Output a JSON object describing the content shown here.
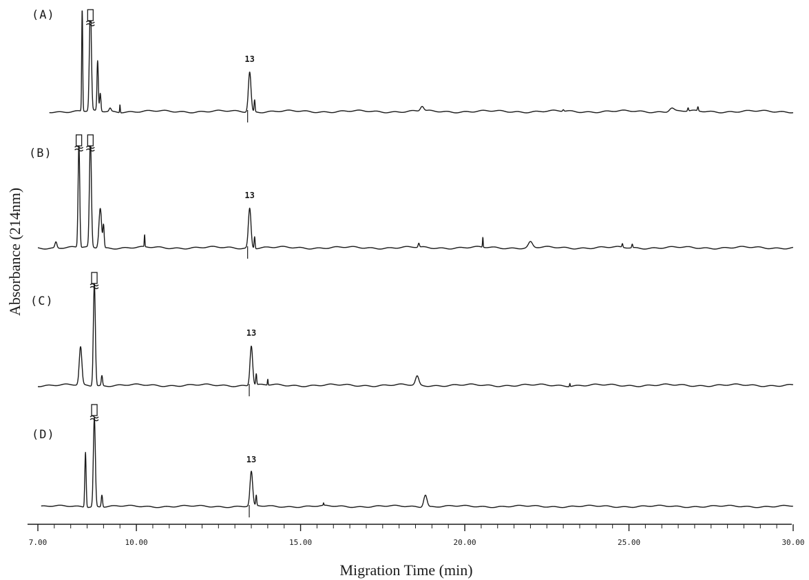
{
  "chart_data": {
    "type": "line",
    "title": "",
    "xlabel": "Migration Time (min)",
    "ylabel": "Absorbance (214nm)",
    "xlim": [
      7.0,
      30.0
    ],
    "x_ticks": [
      7.0,
      10.0,
      15.0,
      20.0,
      25.0,
      30.0
    ],
    "x_tick_labels": [
      "7.00",
      "10.00",
      "15.00",
      "20.00",
      "25.00",
      "30.00"
    ],
    "minor_tick_step": 0.5,
    "grid": false,
    "legend": "none",
    "y_units": "relative absorbance (0 = baseline, 1 = height of peak 13)",
    "series": [
      {
        "name": "(A)",
        "peak_label": "13",
        "peak_label_x": 13.45,
        "peaks": [
          {
            "x": 8.35,
            "h": 2.6,
            "w": 0.015
          },
          {
            "x": 8.6,
            "h": 2.7,
            "w": 0.03,
            "off_scale": true
          },
          {
            "x": 8.82,
            "h": 1.25,
            "w": 0.02
          },
          {
            "x": 8.9,
            "h": 0.45,
            "w": 0.02
          },
          {
            "x": 9.2,
            "h": 0.08,
            "w": 0.03
          },
          {
            "x": 9.5,
            "h": 0.2,
            "w": 0.01
          },
          {
            "x": 13.45,
            "h": 1.0,
            "w": 0.04
          },
          {
            "x": 13.6,
            "h": 0.3,
            "w": 0.015
          },
          {
            "x": 18.7,
            "h": 0.12,
            "w": 0.05
          },
          {
            "x": 23.0,
            "h": 0.04,
            "w": 0.02
          },
          {
            "x": 26.3,
            "h": 0.09,
            "w": 0.07
          },
          {
            "x": 26.8,
            "h": 0.08,
            "w": 0.015
          },
          {
            "x": 27.1,
            "h": 0.1,
            "w": 0.015
          }
        ]
      },
      {
        "name": "(B)",
        "peak_label": "13",
        "peak_label_x": 13.45,
        "peaks": [
          {
            "x": 7.55,
            "h": 0.15,
            "w": 0.03
          },
          {
            "x": 8.25,
            "h": 2.6,
            "w": 0.025,
            "off_scale": true
          },
          {
            "x": 8.6,
            "h": 2.7,
            "w": 0.03,
            "off_scale": true
          },
          {
            "x": 8.9,
            "h": 1.0,
            "w": 0.04
          },
          {
            "x": 9.0,
            "h": 0.55,
            "w": 0.02
          },
          {
            "x": 10.25,
            "h": 0.3,
            "w": 0.01
          },
          {
            "x": 13.45,
            "h": 1.0,
            "w": 0.04
          },
          {
            "x": 13.6,
            "h": 0.3,
            "w": 0.015
          },
          {
            "x": 18.6,
            "h": 0.1,
            "w": 0.02
          },
          {
            "x": 20.55,
            "h": 0.25,
            "w": 0.01
          },
          {
            "x": 22.0,
            "h": 0.14,
            "w": 0.06
          },
          {
            "x": 24.8,
            "h": 0.09,
            "w": 0.015
          },
          {
            "x": 25.1,
            "h": 0.09,
            "w": 0.015
          }
        ]
      },
      {
        "name": "(C)",
        "peak_label": "13",
        "peak_label_x": 13.5,
        "peaks": [
          {
            "x": 8.3,
            "h": 0.95,
            "w": 0.04
          },
          {
            "x": 8.72,
            "h": 2.6,
            "w": 0.03,
            "off_scale": true
          },
          {
            "x": 8.95,
            "h": 0.25,
            "w": 0.02
          },
          {
            "x": 13.5,
            "h": 1.0,
            "w": 0.04
          },
          {
            "x": 13.65,
            "h": 0.28,
            "w": 0.015
          },
          {
            "x": 14.0,
            "h": 0.15,
            "w": 0.01
          },
          {
            "x": 18.55,
            "h": 0.22,
            "w": 0.05
          },
          {
            "x": 23.2,
            "h": 0.08,
            "w": 0.01
          }
        ]
      },
      {
        "name": "(D)",
        "peak_label": "13",
        "peak_label_x": 13.5,
        "peaks": [
          {
            "x": 8.45,
            "h": 1.6,
            "w": 0.02
          },
          {
            "x": 8.72,
            "h": 2.6,
            "w": 0.03,
            "off_scale": true
          },
          {
            "x": 8.95,
            "h": 0.35,
            "w": 0.02
          },
          {
            "x": 13.5,
            "h": 1.0,
            "w": 0.04
          },
          {
            "x": 13.65,
            "h": 0.3,
            "w": 0.015
          },
          {
            "x": 18.8,
            "h": 0.35,
            "w": 0.05
          },
          {
            "x": 15.7,
            "h": 0.07,
            "w": 0.01
          }
        ]
      }
    ]
  }
}
